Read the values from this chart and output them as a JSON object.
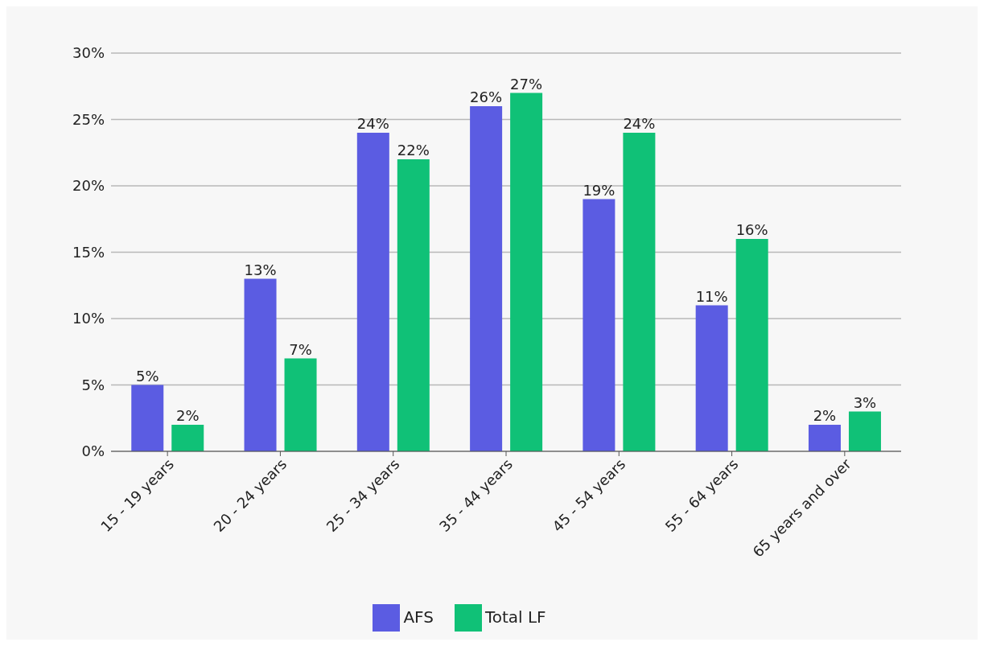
{
  "chart_data": {
    "type": "bar",
    "categories": [
      "15 - 19 years",
      "20 - 24 years",
      "25 - 34 years",
      "35 - 44 years",
      "45 - 54 years",
      "55 - 64 years",
      "65 years and over"
    ],
    "series": [
      {
        "name": "AFS",
        "color": "#5b5ce2",
        "values": [
          5,
          13,
          24,
          26,
          19,
          11,
          2
        ],
        "value_labels": [
          "5%",
          "13%",
          "24%",
          "26%",
          "19%",
          "11%",
          "2%"
        ]
      },
      {
        "name": "Total LF",
        "color": "#10c177",
        "values": [
          2,
          7,
          22,
          27,
          24,
          16,
          3
        ],
        "value_labels": [
          "2%",
          "7%",
          "22%",
          "27%",
          "24%",
          "16%",
          "3%"
        ]
      }
    ],
    "ylim": [
      0,
      30
    ],
    "yticks": [
      {
        "value": 0,
        "label": "0%"
      },
      {
        "value": 5,
        "label": "5%"
      },
      {
        "value": 10,
        "label": "10%"
      },
      {
        "value": 15,
        "label": "15%"
      },
      {
        "value": 20,
        "label": "20%"
      },
      {
        "value": 25,
        "label": "25%"
      },
      {
        "value": 30,
        "label": "30%"
      }
    ],
    "grid": "y",
    "legend": "bottom"
  }
}
